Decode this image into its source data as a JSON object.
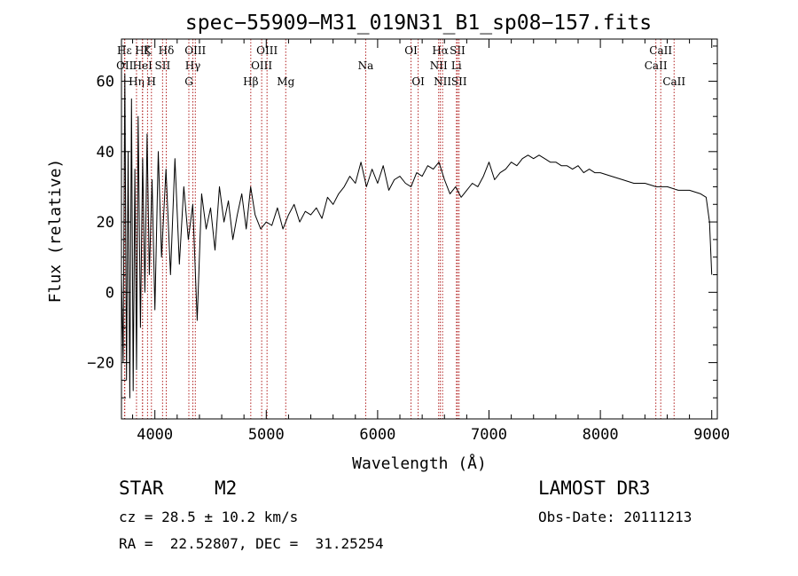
{
  "chart_data": {
    "type": "line",
    "title": "spec−55909−M31_019N31_B1_sp08−157.fits",
    "xlabel": "Wavelength (Å)",
    "ylabel": "Flux (relative)",
    "xlim": [
      3700,
      9050
    ],
    "ylim": [
      -36,
      72
    ],
    "x_ticks": [
      4000,
      5000,
      6000,
      7000,
      8000,
      9000
    ],
    "x_tick_labels": [
      "4000",
      "5000",
      "6000",
      "7000",
      "8000",
      "9000"
    ],
    "y_ticks": [
      -20,
      0,
      20,
      40,
      60
    ],
    "y_tick_labels": [
      "−20",
      "0",
      "20",
      "40",
      "60"
    ],
    "line_color": "#000000",
    "marker_color": "#b22222",
    "series": [
      {
        "name": "flux",
        "x": [
          3700,
          3715,
          3730,
          3745,
          3760,
          3775,
          3790,
          3805,
          3820,
          3835,
          3850,
          3870,
          3890,
          3910,
          3930,
          3950,
          3975,
          4000,
          4030,
          4060,
          4100,
          4140,
          4180,
          4220,
          4260,
          4300,
          4340,
          4380,
          4420,
          4460,
          4500,
          4540,
          4580,
          4620,
          4660,
          4700,
          4740,
          4780,
          4820,
          4860,
          4900,
          4950,
          5000,
          5050,
          5100,
          5150,
          5200,
          5250,
          5300,
          5350,
          5400,
          5450,
          5500,
          5550,
          5600,
          5650,
          5700,
          5750,
          5800,
          5850,
          5900,
          5950,
          6000,
          6050,
          6100,
          6150,
          6200,
          6250,
          6300,
          6350,
          6400,
          6450,
          6500,
          6550,
          6600,
          6650,
          6700,
          6750,
          6800,
          6850,
          6900,
          6950,
          7000,
          7050,
          7100,
          7150,
          7200,
          7250,
          7300,
          7350,
          7400,
          7450,
          7500,
          7550,
          7600,
          7650,
          7700,
          7750,
          7800,
          7850,
          7900,
          7950,
          8000,
          8100,
          8200,
          8300,
          8400,
          8500,
          8600,
          8700,
          8800,
          8900,
          8950,
          8980,
          9000
        ],
        "y": [
          5,
          -20,
          62,
          -25,
          40,
          -30,
          55,
          -28,
          35,
          -22,
          50,
          -10,
          38,
          0,
          45,
          5,
          32,
          -5,
          40,
          10,
          35,
          5,
          38,
          8,
          30,
          15,
          25,
          -8,
          28,
          18,
          24,
          12,
          30,
          20,
          26,
          15,
          22,
          28,
          18,
          30,
          22,
          18,
          20,
          19,
          24,
          18,
          22,
          25,
          20,
          23,
          22,
          24,
          21,
          27,
          25,
          28,
          30,
          33,
          31,
          37,
          30,
          35,
          31,
          36,
          29,
          32,
          33,
          31,
          30,
          34,
          33,
          36,
          35,
          37,
          32,
          28,
          30,
          27,
          29,
          31,
          30,
          33,
          37,
          32,
          34,
          35,
          37,
          36,
          38,
          39,
          38,
          39,
          38,
          37,
          37,
          36,
          36,
          35,
          36,
          34,
          35,
          34,
          34,
          33,
          32,
          31,
          31,
          30,
          30,
          29,
          29,
          28,
          27,
          20,
          5
        ]
      }
    ],
    "lines": [
      {
        "label": "Hε",
        "x": 3727,
        "row": 1
      },
      {
        "label": "OII",
        "x": 3730,
        "row": 2
      },
      {
        "label": "Hη",
        "x": 3835,
        "row": 3
      },
      {
        "label": "Hζ",
        "x": 3889,
        "row": 1
      },
      {
        "label": "K",
        "x": 3934,
        "row": 1
      },
      {
        "label": "HeI",
        "x": 3889,
        "row": 2
      },
      {
        "label": "SII",
        "x": 4069,
        "row": 2
      },
      {
        "label": "H",
        "x": 3969,
        "row": 3
      },
      {
        "label": "Hδ",
        "x": 4102,
        "row": 1
      },
      {
        "label": "OIII",
        "x": 4363,
        "row": 1
      },
      {
        "label": "Hγ",
        "x": 4341,
        "row": 2
      },
      {
        "label": "G",
        "x": 4305,
        "row": 3
      },
      {
        "label": "OIII",
        "x": 5007,
        "row": 1
      },
      {
        "label": "OIII",
        "x": 4959,
        "row": 2
      },
      {
        "label": "Hβ",
        "x": 4861,
        "row": 3
      },
      {
        "label": "Mg",
        "x": 5175,
        "row": 3
      },
      {
        "label": "Na",
        "x": 5893,
        "row": 2
      },
      {
        "label": "OI",
        "x": 6300,
        "row": 1
      },
      {
        "label": "OI",
        "x": 6364,
        "row": 3
      },
      {
        "label": "Hα",
        "x": 6563,
        "row": 1
      },
      {
        "label": "SII",
        "x": 6717,
        "row": 1
      },
      {
        "label": "NII",
        "x": 6548,
        "row": 2
      },
      {
        "label": "Li",
        "x": 6708,
        "row": 2
      },
      {
        "label": "NII",
        "x": 6583,
        "row": 3
      },
      {
        "label": "SII",
        "x": 6731,
        "row": 3
      },
      {
        "label": "CaII",
        "x": 8542,
        "row": 1
      },
      {
        "label": "CaII",
        "x": 8498,
        "row": 2
      },
      {
        "label": "CaII",
        "x": 8662,
        "row": 3
      }
    ]
  },
  "info": {
    "class_label": "STAR",
    "subclass": "M2",
    "survey": "LAMOST DR3",
    "cz": "cz = 28.5 ± 10.2 km/s",
    "obs_date": "Obs-Date: 20111213",
    "coords": "RA =  22.52807, DEC =  31.25254"
  }
}
